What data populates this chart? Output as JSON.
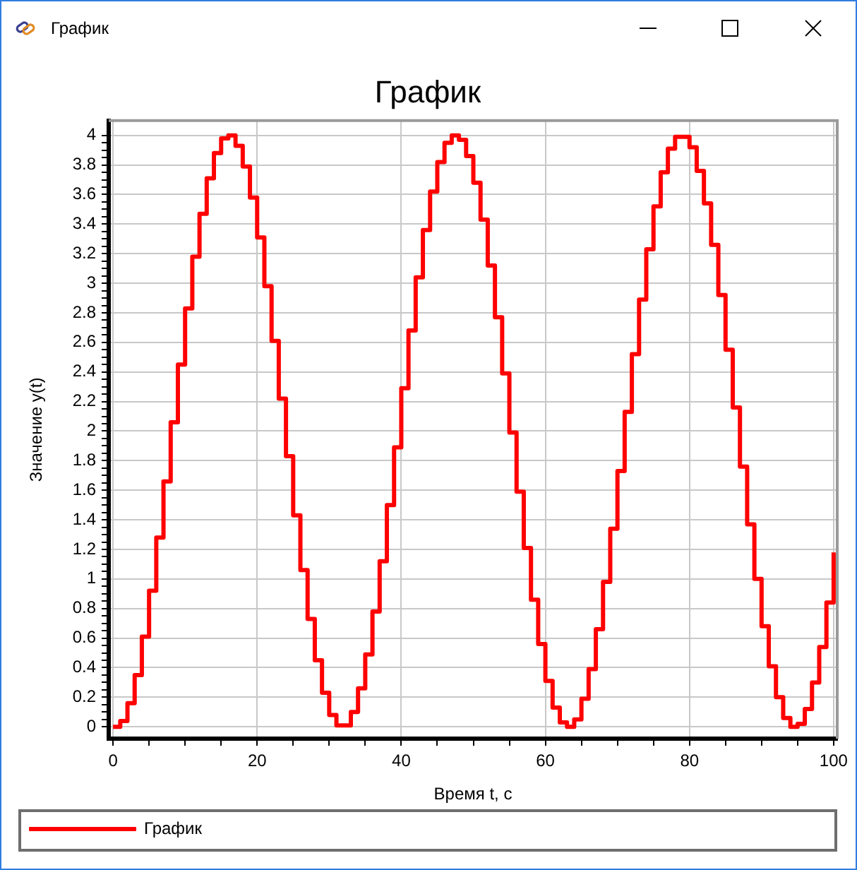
{
  "chart_data": {
    "type": "step",
    "title": "График",
    "xlabel": "Время t, с",
    "ylabel": "Значение y(t)",
    "annotations": [
      "График"
    ],
    "x": [
      0,
      1,
      2,
      3,
      4,
      5,
      6,
      7,
      8,
      9,
      10,
      11,
      12,
      13,
      14,
      15,
      16,
      17,
      18,
      19,
      20,
      21,
      22,
      23,
      24,
      25,
      26,
      27,
      28,
      29,
      30,
      31,
      32,
      33,
      34,
      35,
      36,
      37,
      38,
      39,
      40,
      41,
      42,
      43,
      44,
      45,
      46,
      47,
      48,
      49,
      50,
      51,
      52,
      53,
      54,
      55,
      56,
      57,
      58,
      59,
      60,
      61,
      62,
      63,
      64,
      65,
      66,
      67,
      68,
      69,
      70,
      71,
      72,
      73,
      74,
      75,
      76,
      77,
      78,
      79,
      80,
      81,
      82,
      83,
      84,
      85,
      86,
      87,
      88,
      89,
      90,
      91,
      92,
      93,
      94,
      95,
      96,
      97,
      98,
      99,
      100
    ],
    "series": [
      {
        "name": "График",
        "color": "#ff0000",
        "values": [
          0,
          0.04,
          0.16,
          0.35,
          0.61,
          0.92,
          1.28,
          1.66,
          2.06,
          2.45,
          2.83,
          3.18,
          3.47,
          3.71,
          3.88,
          3.98,
          4,
          3.93,
          3.79,
          3.58,
          3.31,
          2.98,
          2.61,
          2.22,
          1.83,
          1.43,
          1.06,
          0.73,
          0.45,
          0.23,
          0.08,
          0.01,
          0.01,
          0.1,
          0.26,
          0.49,
          0.78,
          1.12,
          1.5,
          1.89,
          2.29,
          2.68,
          3.04,
          3.36,
          3.62,
          3.82,
          3.95,
          4,
          3.97,
          3.86,
          3.68,
          3.43,
          3.12,
          2.77,
          2.39,
          1.99,
          1.59,
          1.21,
          0.86,
          0.56,
          0.31,
          0.13,
          0.03,
          0,
          0.05,
          0.19,
          0.39,
          0.66,
          0.98,
          1.34,
          1.73,
          2.13,
          2.52,
          2.89,
          3.23,
          3.52,
          3.75,
          3.91,
          3.99,
          3.99,
          3.92,
          3.76,
          3.54,
          3.26,
          2.92,
          2.55,
          2.16,
          1.76,
          1.37,
          1,
          0.68,
          0.41,
          0.2,
          0.06,
          0,
          0.02,
          0.12,
          0.3,
          0.54,
          0.84,
          1.18
        ]
      }
    ],
    "xlim": [
      -0.6,
      100.5
    ],
    "ylim": [
      -0.08,
      4.1
    ],
    "xticks": [
      0,
      {
        "value": 5,
        "label": null
      },
      {
        "value": 10,
        "label": null
      },
      {
        "value": 15,
        "label": null
      },
      20,
      {
        "value": 25,
        "label": null
      },
      {
        "value": 30,
        "label": null
      },
      {
        "value": 35,
        "label": null
      },
      40,
      {
        "value": 45,
        "label": null
      },
      {
        "value": 50,
        "label": null
      },
      {
        "value": 55,
        "label": null
      },
      60,
      {
        "value": 65,
        "label": null
      },
      {
        "value": 70,
        "label": null
      },
      {
        "value": 75,
        "label": null
      },
      80,
      {
        "value": 85,
        "label": null
      },
      {
        "value": 90,
        "label": null
      },
      {
        "value": 95,
        "label": null
      },
      100
    ],
    "yticks": [
      0,
      {
        "value": 0.05,
        "label": null
      },
      {
        "value": 0.1,
        "label": null
      },
      {
        "value": 0.15,
        "label": null
      },
      0.2,
      {
        "value": 0.25,
        "label": null
      },
      {
        "value": 0.3,
        "label": null
      },
      {
        "value": 0.35,
        "label": null
      },
      0.4,
      {
        "value": 0.45,
        "label": null
      },
      {
        "value": 0.5,
        "label": null
      },
      {
        "value": 0.55,
        "label": null
      },
      0.6,
      {
        "value": 0.65,
        "label": null
      },
      {
        "value": 0.7,
        "label": null
      },
      {
        "value": 0.75,
        "label": null
      },
      0.8,
      {
        "value": 0.85,
        "label": null
      },
      {
        "value": 0.9,
        "label": null
      },
      {
        "value": 0.95,
        "label": null
      },
      1,
      {
        "value": 1.05,
        "label": null
      },
      {
        "value": 1.1,
        "label": null
      },
      {
        "value": 1.15,
        "label": null
      },
      1.2,
      {
        "value": 1.25,
        "label": null
      },
      {
        "value": 1.3,
        "label": null
      },
      {
        "value": 1.35,
        "label": null
      },
      1.4,
      {
        "value": 1.45,
        "label": null
      },
      {
        "value": 1.5,
        "label": null
      },
      {
        "value": 1.55,
        "label": null
      },
      1.6,
      {
        "value": 1.65,
        "label": null
      },
      {
        "value": 1.7,
        "label": null
      },
      {
        "value": 1.75,
        "label": null
      },
      1.8,
      {
        "value": 1.85,
        "label": null
      },
      {
        "value": 1.9,
        "label": null
      },
      {
        "value": 1.95,
        "label": null
      },
      2,
      {
        "value": 2.05,
        "label": null
      },
      {
        "value": 2.1,
        "label": null
      },
      {
        "value": 2.15,
        "label": null
      },
      2.2,
      {
        "value": 2.25,
        "label": null
      },
      {
        "value": 2.3,
        "label": null
      },
      {
        "value": 2.35,
        "label": null
      },
      2.4,
      {
        "value": 2.45,
        "label": null
      },
      {
        "value": 2.5,
        "label": null
      },
      {
        "value": 2.55,
        "label": null
      },
      2.6,
      {
        "value": 2.65,
        "label": null
      },
      {
        "value": 2.7,
        "label": null
      },
      {
        "value": 2.75,
        "label": null
      },
      2.8,
      {
        "value": 2.85,
        "label": null
      },
      {
        "value": 2.9,
        "label": null
      },
      {
        "value": 2.95,
        "label": null
      },
      3,
      {
        "value": 3.05,
        "label": null
      },
      {
        "value": 3.1,
        "label": null
      },
      {
        "value": 3.15,
        "label": null
      },
      3.2,
      {
        "value": 3.25,
        "label": null
      },
      {
        "value": 3.3,
        "label": null
      },
      {
        "value": 3.35,
        "label": null
      },
      3.4,
      {
        "value": 3.45,
        "label": null
      },
      {
        "value": 3.5,
        "label": null
      },
      {
        "value": 3.55,
        "label": null
      },
      3.6,
      {
        "value": 3.65,
        "label": null
      },
      {
        "value": 3.7,
        "label": null
      },
      {
        "value": 3.75,
        "label": null
      },
      3.8,
      {
        "value": 3.85,
        "label": null
      },
      {
        "value": 3.9,
        "label": null
      },
      {
        "value": 3.95,
        "label": null
      },
      4
    ],
    "grid": true,
    "legend": "bottom"
  }
}
